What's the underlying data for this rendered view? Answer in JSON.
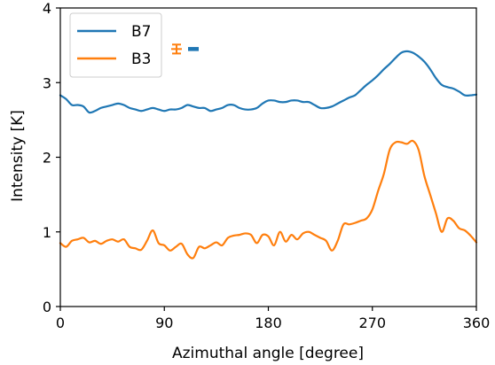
{
  "chart_data": {
    "type": "line",
    "title": "",
    "xlabel": "Azimuthal angle [degree]",
    "ylabel": "Intensity [K]",
    "xlim": [
      0,
      360
    ],
    "ylim": [
      0,
      4
    ],
    "xticks": [
      0,
      90,
      180,
      270,
      360
    ],
    "yticks": [
      0,
      1,
      2,
      3,
      4
    ],
    "grid": false,
    "legend": "top-left",
    "series": [
      {
        "name": "B7",
        "color": "#1f77b4",
        "x": [
          0,
          5,
          10,
          15,
          20,
          25,
          30,
          35,
          40,
          45,
          50,
          55,
          60,
          65,
          70,
          75,
          80,
          85,
          90,
          95,
          100,
          105,
          110,
          115,
          120,
          125,
          130,
          135,
          140,
          145,
          150,
          155,
          160,
          165,
          170,
          175,
          180,
          185,
          190,
          195,
          200,
          205,
          210,
          215,
          220,
          225,
          230,
          235,
          240,
          245,
          250,
          255,
          260,
          265,
          270,
          275,
          280,
          285,
          290,
          295,
          300,
          305,
          310,
          315,
          320,
          325,
          330,
          335,
          340,
          345,
          350,
          355,
          360
        ],
        "y": [
          2.83,
          2.78,
          2.7,
          2.7,
          2.68,
          2.6,
          2.62,
          2.66,
          2.68,
          2.7,
          2.72,
          2.7,
          2.66,
          2.64,
          2.62,
          2.64,
          2.66,
          2.64,
          2.62,
          2.64,
          2.64,
          2.66,
          2.7,
          2.68,
          2.66,
          2.66,
          2.62,
          2.64,
          2.66,
          2.7,
          2.7,
          2.66,
          2.64,
          2.64,
          2.66,
          2.72,
          2.76,
          2.76,
          2.74,
          2.74,
          2.76,
          2.76,
          2.74,
          2.74,
          2.7,
          2.66,
          2.66,
          2.68,
          2.72,
          2.76,
          2.8,
          2.83,
          2.9,
          2.97,
          3.03,
          3.1,
          3.18,
          3.25,
          3.33,
          3.4,
          3.42,
          3.4,
          3.35,
          3.28,
          3.18,
          3.06,
          2.97,
          2.94,
          2.92,
          2.88,
          2.83,
          2.83,
          2.84
        ]
      },
      {
        "name": "B3",
        "color": "#ff7f0e",
        "x": [
          0,
          5,
          10,
          15,
          20,
          25,
          30,
          35,
          40,
          45,
          50,
          55,
          60,
          65,
          70,
          75,
          80,
          85,
          90,
          95,
          100,
          105,
          110,
          115,
          120,
          125,
          130,
          135,
          140,
          145,
          150,
          155,
          160,
          165,
          170,
          175,
          180,
          185,
          190,
          195,
          200,
          205,
          210,
          215,
          220,
          225,
          230,
          235,
          240,
          245,
          250,
          255,
          260,
          265,
          270,
          275,
          280,
          285,
          290,
          295,
          300,
          305,
          310,
          315,
          320,
          325,
          330,
          335,
          340,
          345,
          350,
          355,
          360
        ],
        "y": [
          0.85,
          0.8,
          0.88,
          0.9,
          0.92,
          0.86,
          0.88,
          0.84,
          0.88,
          0.9,
          0.87,
          0.9,
          0.8,
          0.78,
          0.76,
          0.88,
          1.02,
          0.85,
          0.82,
          0.75,
          0.8,
          0.84,
          0.7,
          0.65,
          0.8,
          0.78,
          0.82,
          0.86,
          0.82,
          0.92,
          0.95,
          0.96,
          0.98,
          0.96,
          0.85,
          0.96,
          0.94,
          0.82,
          1.0,
          0.87,
          0.96,
          0.9,
          0.98,
          1.0,
          0.96,
          0.92,
          0.88,
          0.75,
          0.88,
          1.1,
          1.1,
          1.12,
          1.15,
          1.18,
          1.3,
          1.55,
          1.78,
          2.1,
          2.2,
          2.2,
          2.18,
          2.22,
          2.1,
          1.75,
          1.5,
          1.25,
          1.0,
          1.18,
          1.15,
          1.05,
          1.02,
          0.95,
          0.86
        ]
      }
    ],
    "error_bars": [
      {
        "series": "B3",
        "x_position": "after-legend",
        "y": 3.45,
        "err": 0.06,
        "color": "#ff7f0e"
      },
      {
        "series": "B7",
        "x_position": "after-legend",
        "y": 3.45,
        "err": 0.015,
        "color": "#1f77b4"
      }
    ]
  }
}
